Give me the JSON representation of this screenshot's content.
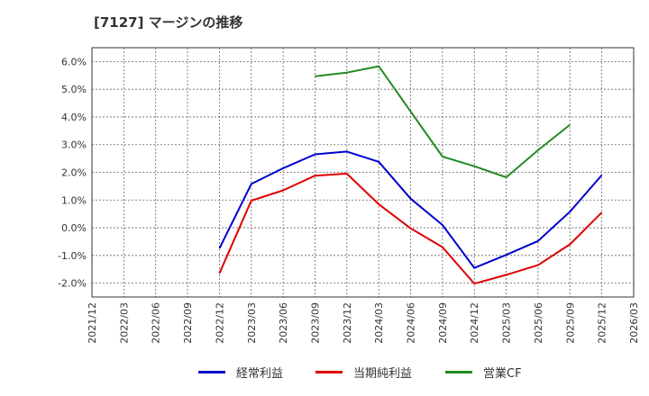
{
  "chart_data": {
    "type": "line",
    "title": "[7127]  マージンの推移",
    "xlabel": "",
    "ylabel": "",
    "ylim": [
      -2.5,
      6.5
    ],
    "yticks": [
      6.0,
      5.0,
      4.0,
      3.0,
      2.0,
      1.0,
      0.0,
      -1.0,
      -2.0
    ],
    "ytick_labels": [
      "6.0%",
      "5.0%",
      "4.0%",
      "3.0%",
      "2.0%",
      "1.0%",
      "0.0%",
      "-1.0%",
      "-2.0%"
    ],
    "x": [
      "2021/12",
      "2022/03",
      "2022/06",
      "2022/09",
      "2022/12",
      "2023/03",
      "2023/06",
      "2023/09",
      "2023/12",
      "2024/03",
      "2024/06",
      "2024/09",
      "2024/12",
      "2025/03",
      "2025/06",
      "2025/09",
      "2025/12",
      "2026/03"
    ],
    "grid": true,
    "legend_position": "bottom",
    "series": [
      {
        "name": "経常利益",
        "color": "#0000cc",
        "values": [
          null,
          null,
          null,
          null,
          -0.75,
          1.58,
          2.15,
          2.65,
          2.75,
          2.38,
          1.05,
          0.1,
          -1.45,
          -0.98,
          -0.48,
          0.58,
          1.9,
          null
        ]
      },
      {
        "name": "当期純利益",
        "color": "#dd0000",
        "values": [
          null,
          null,
          null,
          null,
          -1.65,
          0.98,
          1.35,
          1.88,
          1.95,
          0.85,
          -0.02,
          -0.7,
          -2.02,
          -1.7,
          -1.35,
          -0.6,
          0.55,
          null
        ]
      },
      {
        "name": "営業CF",
        "color": "#228b22",
        "values": [
          null,
          null,
          null,
          null,
          null,
          null,
          null,
          5.47,
          5.6,
          5.83,
          4.2,
          2.57,
          2.22,
          1.82,
          2.8,
          3.72,
          null,
          null
        ]
      }
    ]
  }
}
